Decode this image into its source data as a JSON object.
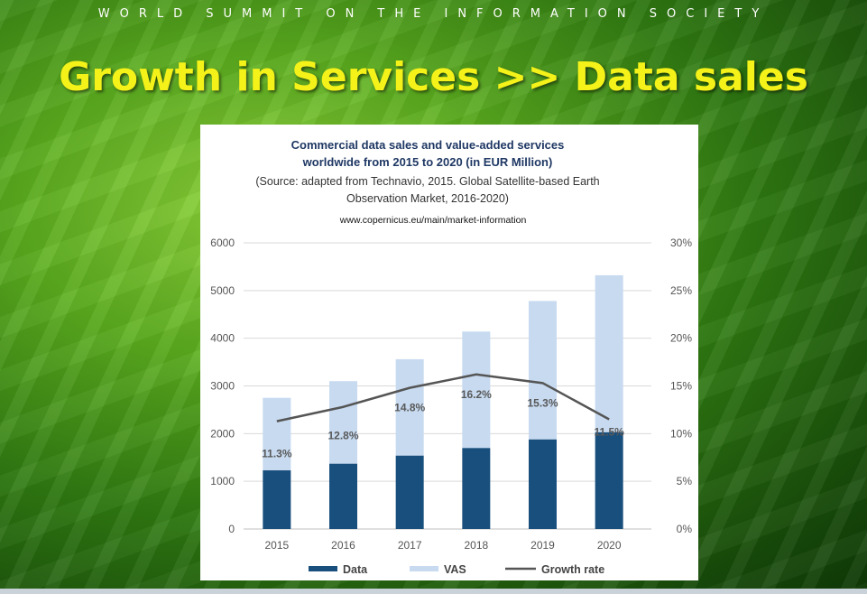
{
  "slide": {
    "header": "WORLD SUMMIT ON THE INFORMATION SOCIETY",
    "title": "Growth in Services >> Data sales"
  },
  "chart_data": {
    "type": "bar",
    "title_line1": "Commercial data sales and value-added services",
    "title_line2": "worldwide from 2015 to 2020  (in EUR Million)",
    "subtitle_line1": "(Source: adapted from Technavio, 2015. Global Satellite-based Earth",
    "subtitle_line2": "Observation Market, 2016-2020)",
    "source_url": "www.copernicus.eu/main/market-information",
    "categories": [
      "2015",
      "2016",
      "2017",
      "2018",
      "2019",
      "2020"
    ],
    "stacked": true,
    "series": [
      {
        "name": "Data",
        "values": [
          1230,
          1370,
          1540,
          1700,
          1880,
          2030
        ],
        "color": "#184f7d"
      },
      {
        "name": "VAS",
        "values": [
          1520,
          1730,
          2020,
          2440,
          2900,
          3290
        ],
        "color": "#c7daf0"
      }
    ],
    "line_series": {
      "name": "Growth rate",
      "values": [
        11.3,
        12.8,
        14.8,
        16.2,
        15.3,
        11.5
      ],
      "labels": [
        "11.3%",
        "12.8%",
        "14.8%",
        "16.2%",
        "15.3%",
        "11.5%"
      ],
      "color": "#555555"
    },
    "ylim": [
      0,
      6000
    ],
    "y_ticks": [
      "0",
      "1000",
      "2000",
      "3000",
      "4000",
      "5000",
      "6000"
    ],
    "y2lim": [
      0,
      30
    ],
    "y2_ticks": [
      "0%",
      "5%",
      "10%",
      "15%",
      "20%",
      "25%",
      "30%"
    ],
    "grid": true,
    "legend_position": "bottom"
  }
}
